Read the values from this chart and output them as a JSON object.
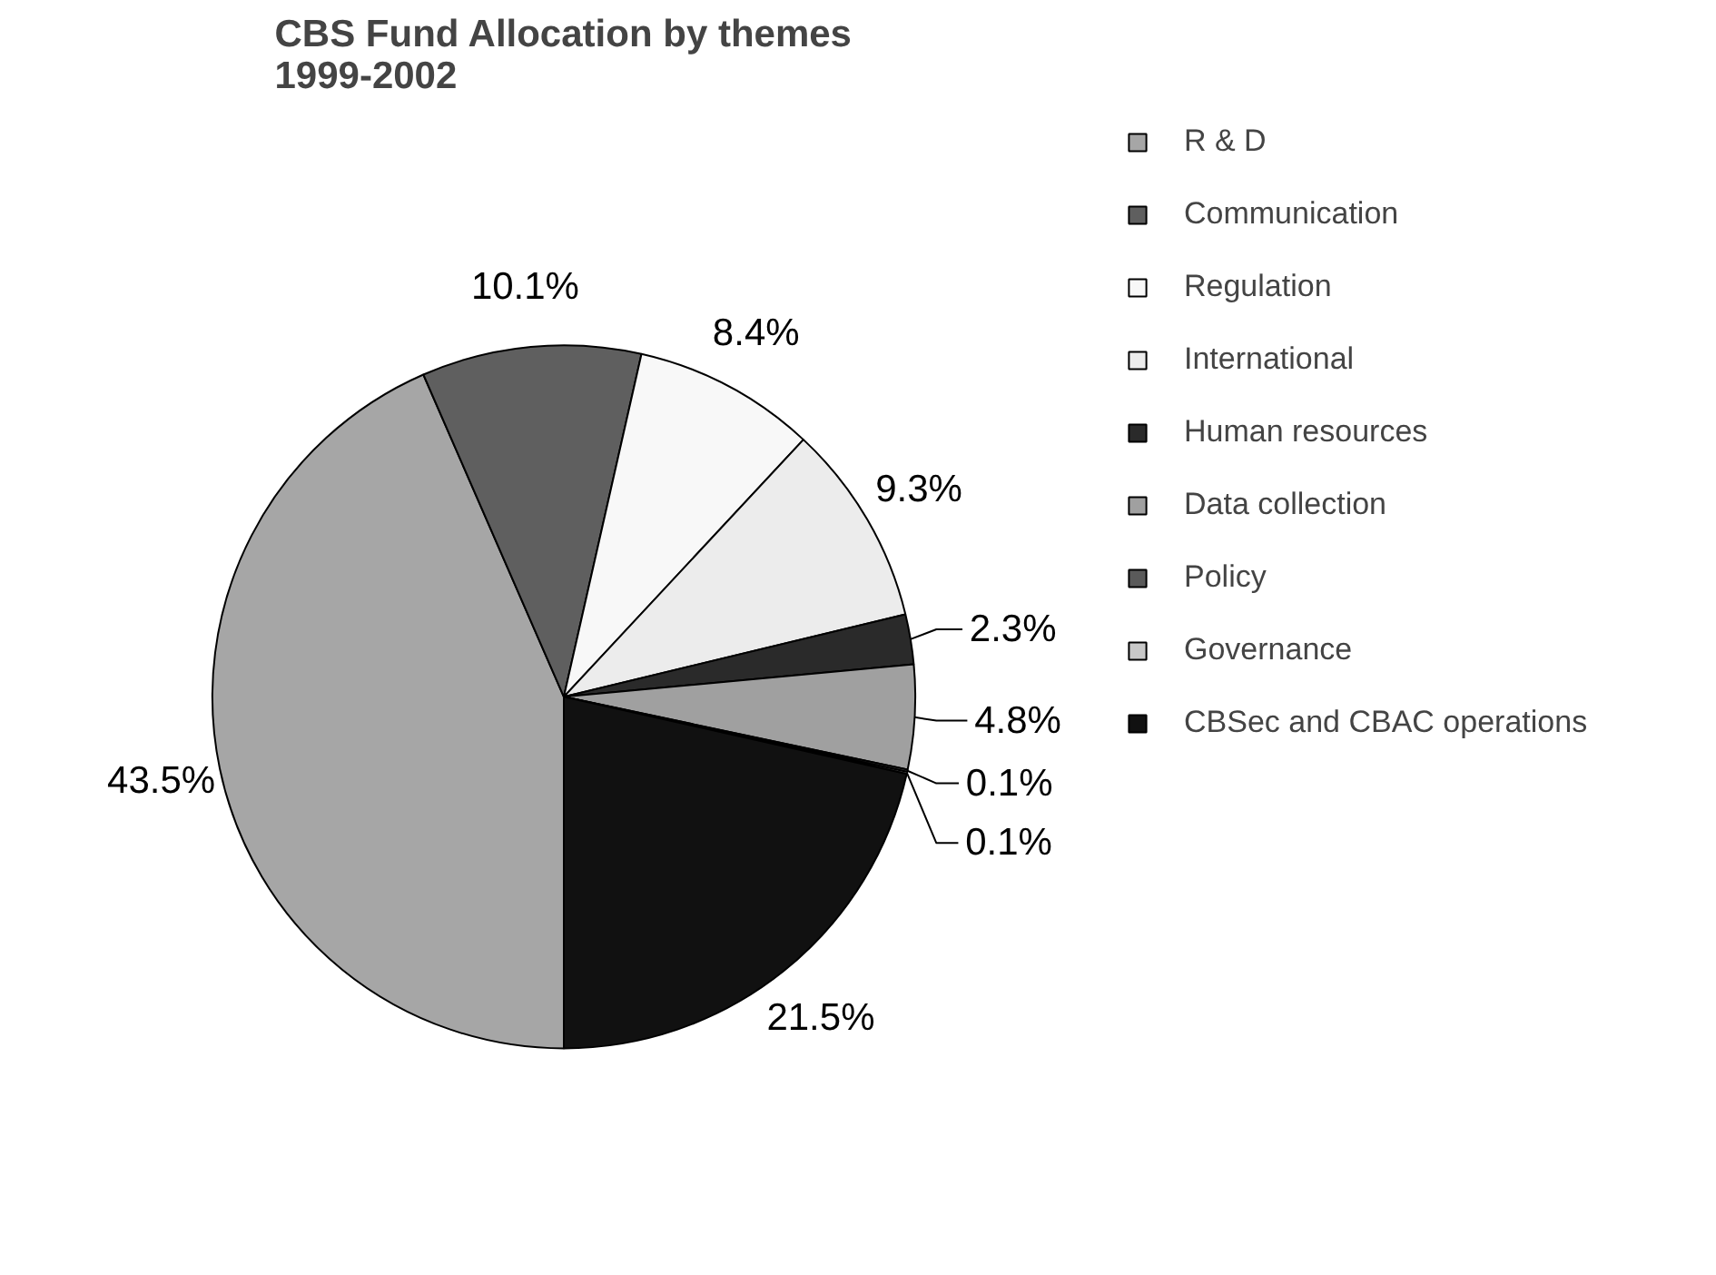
{
  "chart_data": {
    "type": "pie",
    "title": "CBS Fund Allocation by themes\n1999-2002",
    "categories": [
      "R & D",
      "Communication",
      "Regulation",
      "International",
      "Human resources",
      "Data collection",
      "Policy",
      "Governance",
      "CBSec and CBAC operations"
    ],
    "values": [
      43.5,
      10.1,
      8.4,
      9.3,
      2.3,
      4.8,
      0.1,
      0.1,
      21.5
    ],
    "value_labels": [
      "43.5%",
      "10.1%",
      "8.4%",
      "9.3%",
      "2.3%",
      "4.8%",
      "0.1%",
      "0.1%",
      "21.5%"
    ],
    "colors": [
      "#a6a6a6",
      "#5f5f5f",
      "#f8f8f8",
      "#ececec",
      "#2a2a2a",
      "#a0a0a0",
      "#5a5a5a",
      "#c8c8c8",
      "#111111"
    ],
    "legend": "right"
  }
}
